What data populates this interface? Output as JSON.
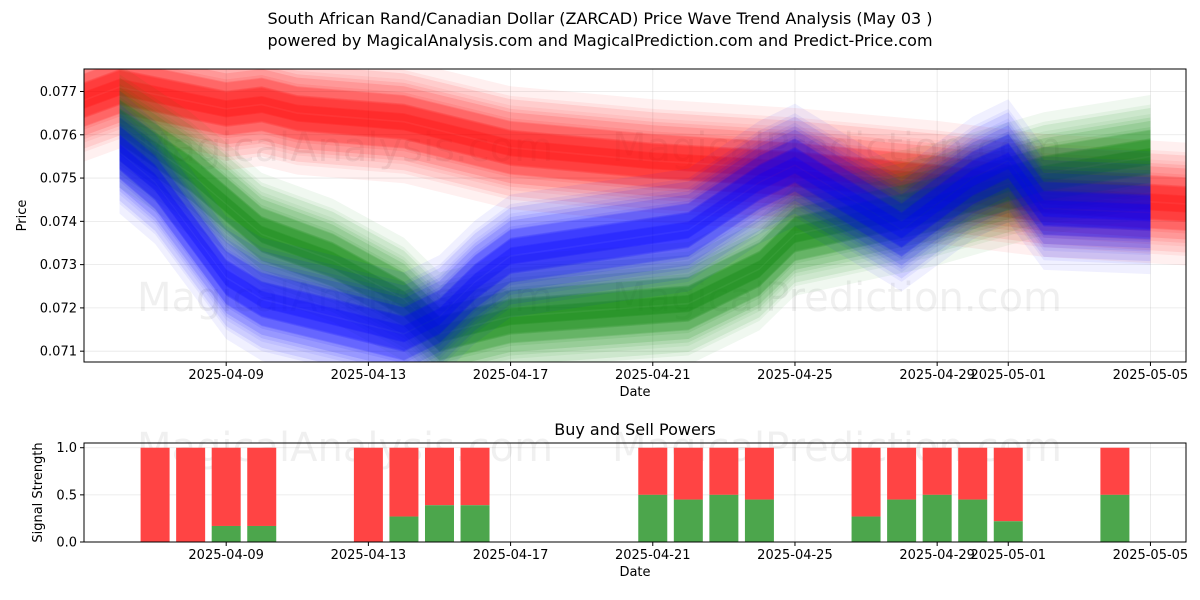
{
  "header": {
    "title_line1": "South African Rand/Canadian Dollar (ZARCAD) Price Wave Trend Analysis (May 03 )",
    "title_line2": "powered by MagicalAnalysis.com and MagicalPrediction.com and Predict-Price.com"
  },
  "watermarks": [
    "MagicalAnalysis.com",
    "MagicalPrediction.com"
  ],
  "colors": {
    "red": "#ff0000",
    "green": "#008000",
    "blue": "#0000ff",
    "bar_red": "#ff4444",
    "bar_green": "#4ca64c"
  },
  "chart_data": [
    {
      "type": "area",
      "title": "",
      "xlabel": "Date",
      "ylabel": "Price",
      "x_ticks": [
        "2025-04-09",
        "2025-04-13",
        "2025-04-17",
        "2025-04-21",
        "2025-04-25",
        "2025-04-29",
        "2025-05-01",
        "2025-05-05"
      ],
      "y_ticks": [
        "0.071",
        "0.072",
        "0.073",
        "0.074",
        "0.075",
        "0.076",
        "0.077"
      ],
      "xlim": [
        "2025-04-05",
        "2025-05-06"
      ],
      "ylim": [
        0.07075,
        0.07752
      ],
      "grid": true,
      "series": [
        {
          "color": "red",
          "x": [
            "2025-04-05",
            "2025-04-06",
            "2025-04-09",
            "2025-04-10",
            "2025-04-11",
            "2025-04-14",
            "2025-04-17",
            "2025-04-21",
            "2025-04-25",
            "2025-04-29",
            "2025-05-02",
            "2025-05-06"
          ],
          "y": [
            0.0768,
            0.0771,
            0.0766,
            0.0767,
            0.0765,
            0.0763,
            0.0757,
            0.0754,
            0.0752,
            0.0749,
            0.0746,
            0.0744
          ]
        },
        {
          "color": "green",
          "x": [
            "2025-04-06",
            "2025-04-08",
            "2025-04-10",
            "2025-04-12",
            "2025-04-14",
            "2025-04-15",
            "2025-04-17",
            "2025-04-22",
            "2025-04-24",
            "2025-04-25",
            "2025-04-29",
            "2025-05-02",
            "2025-05-05"
          ],
          "y": [
            0.0762,
            0.0751,
            0.0737,
            0.0731,
            0.0722,
            0.0714,
            0.0718,
            0.0721,
            0.0729,
            0.0737,
            0.0744,
            0.0751,
            0.0755
          ]
        },
        {
          "color": "blue",
          "x": [
            "2025-04-06",
            "2025-04-07",
            "2025-04-09",
            "2025-04-10",
            "2025-04-12",
            "2025-04-14",
            "2025-04-15",
            "2025-04-16",
            "2025-04-17",
            "2025-04-22",
            "2025-04-24",
            "2025-04-25",
            "2025-04-28",
            "2025-04-30",
            "2025-05-01",
            "2025-05-02",
            "2025-05-05"
          ],
          "y": [
            0.0756,
            0.0749,
            0.0727,
            0.0722,
            0.0718,
            0.0714,
            0.0718,
            0.0726,
            0.0732,
            0.0738,
            0.0749,
            0.0753,
            0.0738,
            0.075,
            0.0754,
            0.0743,
            0.0742
          ]
        }
      ]
    },
    {
      "type": "bar",
      "title": "Buy and Sell Powers",
      "xlabel": "Date",
      "ylabel": "Signal Strength",
      "x_ticks": [
        "2025-04-09",
        "2025-04-13",
        "2025-04-17",
        "2025-04-21",
        "2025-04-25",
        "2025-04-29",
        "2025-05-01",
        "2025-05-05"
      ],
      "y_ticks": [
        "0.0",
        "0.5",
        "1.0"
      ],
      "xlim": [
        "2025-04-05",
        "2025-05-06"
      ],
      "ylim": [
        0,
        1.05
      ],
      "grid": true,
      "categories": [
        "2025-04-07",
        "2025-04-08",
        "2025-04-09",
        "2025-04-10",
        "2025-04-13",
        "2025-04-14",
        "2025-04-15",
        "2025-04-16",
        "2025-04-21",
        "2025-04-22",
        "2025-04-23",
        "2025-04-24",
        "2025-04-27",
        "2025-04-28",
        "2025-04-29",
        "2025-04-30",
        "2025-05-01",
        "2025-05-04"
      ],
      "series": [
        {
          "color": "green",
          "values": [
            0,
            0,
            0.17,
            0.17,
            0,
            0.27,
            0.39,
            0.39,
            0.5,
            0.45,
            0.5,
            0.45,
            0.27,
            0.45,
            0.5,
            0.45,
            0.22,
            0.5
          ]
        },
        {
          "color": "red",
          "values": [
            1,
            1,
            0.83,
            0.83,
            1,
            0.73,
            0.61,
            0.61,
            0.5,
            0.55,
            0.5,
            0.55,
            0.73,
            0.55,
            0.5,
            0.55,
            0.78,
            0.5
          ]
        }
      ]
    }
  ]
}
